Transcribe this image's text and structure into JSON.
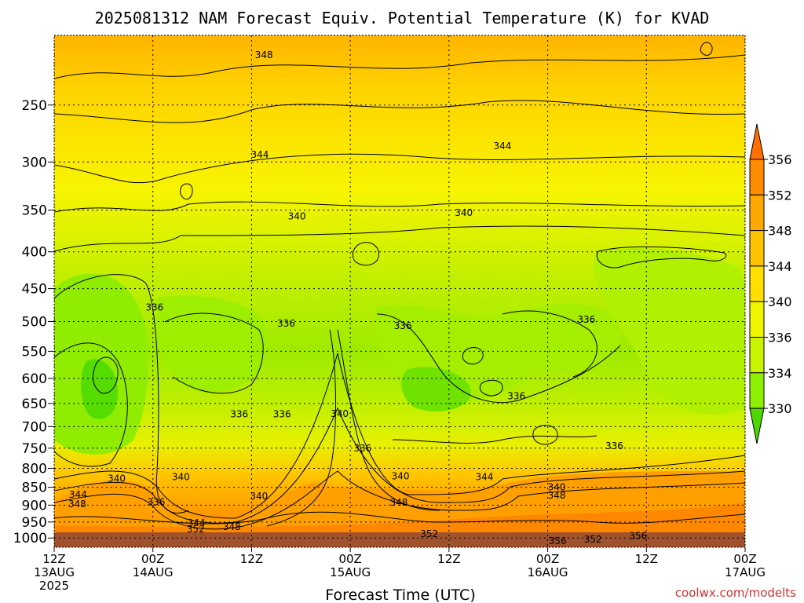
{
  "chart_data": {
    "type": "heatmap",
    "title": "2025081312 NAM Forecast Equiv. Potential Temperature (K) for KVAD",
    "xlabel": "Forecast Time (UTC)",
    "ylabel": "",
    "x_ticks": [
      {
        "line1": "12Z",
        "line2": "13AUG",
        "line3": "2025"
      },
      {
        "line1": "00Z",
        "line2": "14AUG",
        "line3": ""
      },
      {
        "line1": "12Z",
        "line2": "",
        "line3": ""
      },
      {
        "line1": "00Z",
        "line2": "15AUG",
        "line3": ""
      },
      {
        "line1": "12Z",
        "line2": "",
        "line3": ""
      },
      {
        "line1": "00Z",
        "line2": "16AUG",
        "line3": ""
      },
      {
        "line1": "12Z",
        "line2": "",
        "line3": ""
      },
      {
        "line1": "00Z",
        "line2": "17AUG",
        "line3": ""
      }
    ],
    "x_hours": [
      0,
      12,
      24,
      36,
      48,
      60,
      72,
      84
    ],
    "x_range_hours": [
      0,
      84
    ],
    "y_ticks": [
      "250",
      "300",
      "350",
      "400",
      "450",
      "500",
      "550",
      "600",
      "650",
      "700",
      "750",
      "800",
      "850",
      "900",
      "950",
      "1000"
    ],
    "y_range_hpa": [
      200,
      1030
    ],
    "y_scale": "log-pressure",
    "colorbar_levels": [
      "330",
      "334",
      "336",
      "340",
      "344",
      "348",
      "352",
      "356"
    ],
    "colorbar_colors": [
      "#4cd800",
      "#8ef000",
      "#c8f400",
      "#f0f400",
      "#ffde00",
      "#ffc400",
      "#ffa800",
      "#ff8c00",
      "#ff7000"
    ],
    "grid": true,
    "contour_labels": [
      {
        "text": "348",
        "hour": 25.5,
        "p": 213
      },
      {
        "text": "344",
        "hour": 25,
        "p": 293
      },
      {
        "text": "344",
        "hour": 54.5,
        "p": 285
      },
      {
        "text": "340",
        "hour": 29.5,
        "p": 357
      },
      {
        "text": "340",
        "hour": 49.8,
        "p": 353
      },
      {
        "text": "336",
        "hour": 12.2,
        "p": 478
      },
      {
        "text": "336",
        "hour": 28.2,
        "p": 503
      },
      {
        "text": "336",
        "hour": 42.4,
        "p": 507
      },
      {
        "text": "336",
        "hour": 64.7,
        "p": 497
      },
      {
        "text": "336",
        "hour": 56.2,
        "p": 635
      },
      {
        "text": "336",
        "hour": 22.5,
        "p": 673
      },
      {
        "text": "336",
        "hour": 27.7,
        "p": 673
      },
      {
        "text": "340",
        "hour": 34.7,
        "p": 672
      },
      {
        "text": "336",
        "hour": 37.5,
        "p": 750
      },
      {
        "text": "336",
        "hour": 68.1,
        "p": 745
      },
      {
        "text": "340",
        "hour": 7.6,
        "p": 827
      },
      {
        "text": "340",
        "hour": 15.4,
        "p": 823
      },
      {
        "text": "340",
        "hour": 24.9,
        "p": 875
      },
      {
        "text": "340",
        "hour": 42.1,
        "p": 820
      },
      {
        "text": "344",
        "hour": 2.9,
        "p": 870
      },
      {
        "text": "348",
        "hour": 2.8,
        "p": 897
      },
      {
        "text": "336",
        "hour": 12.4,
        "p": 891
      },
      {
        "text": "344",
        "hour": 17.3,
        "p": 953
      },
      {
        "text": "352",
        "hour": 17.2,
        "p": 972
      },
      {
        "text": "348",
        "hour": 21.6,
        "p": 965
      },
      {
        "text": "348",
        "hour": 41.9,
        "p": 892
      },
      {
        "text": "344",
        "hour": 52.3,
        "p": 823
      },
      {
        "text": "340",
        "hour": 61.1,
        "p": 850
      },
      {
        "text": "348",
        "hour": 61.1,
        "p": 872
      },
      {
        "text": "352",
        "hour": 45.6,
        "p": 987
      },
      {
        "text": "352",
        "hour": 65.5,
        "p": 1004
      },
      {
        "text": "356",
        "hour": 61.2,
        "p": 1009
      },
      {
        "text": "356",
        "hour": 71.0,
        "p": 993
      }
    ]
  },
  "credit": "coolwx.com/modelts"
}
